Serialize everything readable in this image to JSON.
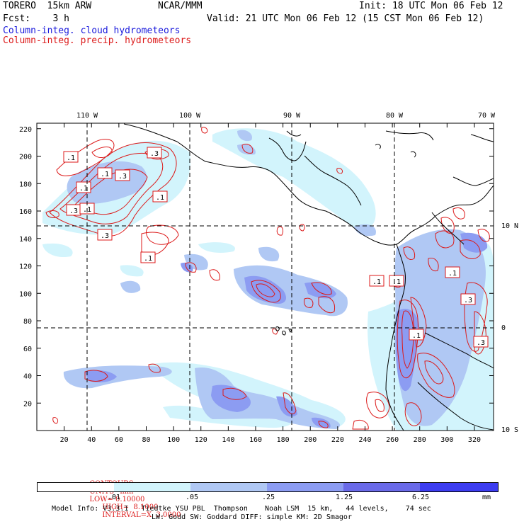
{
  "header": {
    "model_line": "TORERO  15km ARW",
    "org": "NCAR/MMM",
    "init": "Init: 18 UTC Mon 06 Feb 12",
    "fcst": "Fcst:    3 h",
    "valid": "Valid: 21 UTC Mon 06 Feb 12 (15 CST Mon 06 Feb 12)",
    "legend_cloud": "Column-integ. cloud hydrometeors",
    "legend_precip": "Column-integ. precip. hydrometeors"
  },
  "axes": {
    "top_lon_labels": [
      "110 W",
      "100 W",
      "90 W",
      "80 W",
      "70 W"
    ],
    "right_lat_labels": [
      "10 N",
      "0",
      "10 S"
    ],
    "y_ticks": [
      "220",
      "200",
      "180",
      "160",
      "140",
      "120",
      "100",
      "80",
      "60",
      "40",
      "20"
    ],
    "x_ticks": [
      "20",
      "40",
      "60",
      "80",
      "100",
      "120",
      "140",
      "160",
      "180",
      "200",
      "220",
      "240",
      "260",
      "280",
      "300",
      "320"
    ]
  },
  "contour_labels": [
    ".1",
    ".3",
    ".1",
    ".3",
    ".1",
    ".1",
    ".3",
    ".3",
    ".1",
    ".1",
    ".1",
    ".1",
    ".3",
    ".1",
    ".3",
    ".1"
  ],
  "contour_info": {
    "label": "CONTOURS:",
    "units": "UNITS=mm",
    "low": "LOW= 0.10000",
    "high": "HIGH=  8.1000",
    "interval": "INTERVAL=X  3.0000"
  },
  "colorbar": {
    "values": [
      ".01",
      ".05",
      ".25",
      "1.25",
      "6.25"
    ],
    "unit": "mm",
    "colors": [
      "#ffffff",
      "#d2f4fc",
      "#b0c8f4",
      "#8c9cf2",
      "#6a6ae8",
      "#3c3cf0"
    ]
  },
  "footer": {
    "line1": "Model Info: V3.3.1   Tiedtke YSU PBL  Thompson    Noah LSM  15 km,   44 levels,    74 sec",
    "line2": "LW: Godd SW: Goddard DIFF: simple KM: 2D Smagor"
  }
}
